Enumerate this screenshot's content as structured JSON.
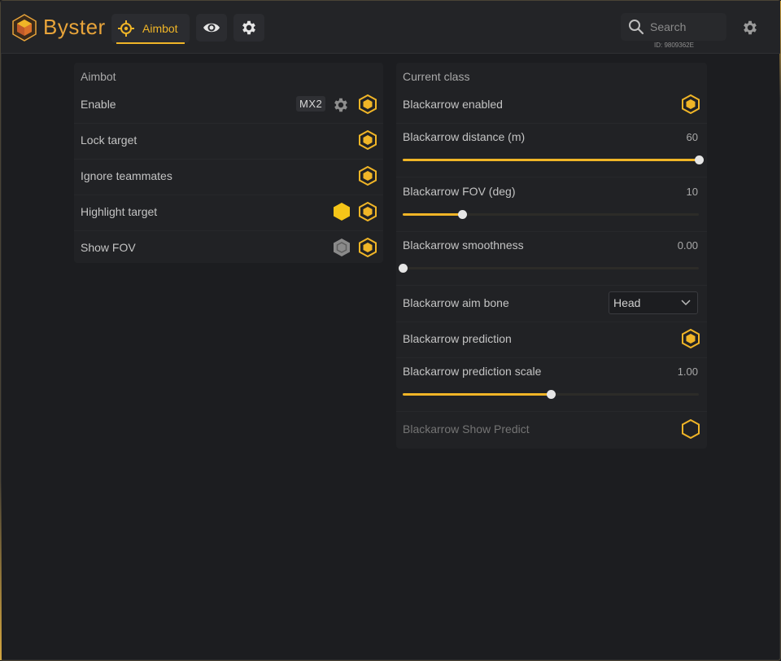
{
  "app": {
    "brand": "Byster",
    "user_id": "ID: 9809362E",
    "search_placeholder": "Search",
    "accent": "#f0b527"
  },
  "tabs": [
    {
      "label": "Aimbot",
      "icon": "crosshair-icon",
      "active": true
    },
    {
      "label": "",
      "icon": "eye-icon",
      "active": false
    },
    {
      "label": "",
      "icon": "gear-icon",
      "active": false
    }
  ],
  "aimbot_panel": {
    "title": "Aimbot",
    "rows": [
      {
        "label": "Enable",
        "hotkey": "MX2",
        "has_settings": true,
        "toggle": "on"
      },
      {
        "label": "Lock target",
        "toggle": "on"
      },
      {
        "label": "Ignore teammates",
        "toggle": "on"
      },
      {
        "label": "Highlight target",
        "color_swatch": "#f5c518",
        "toggle": "on"
      },
      {
        "label": "Show FOV",
        "color_swatch": "#8a8a8a",
        "toggle": "on"
      }
    ]
  },
  "class_panel": {
    "title": "Current class",
    "enabled_label": "Blackarrow enabled",
    "distance": {
      "label": "Blackarrow distance (m)",
      "value": "60",
      "fraction": 1.0
    },
    "fov": {
      "label": "Blackarrow FOV (deg)",
      "value": "10",
      "fraction": 0.2
    },
    "smoothness": {
      "label": "Blackarrow smoothness",
      "value": "0.00",
      "fraction": 0.0
    },
    "aim_bone": {
      "label": "Blackarrow aim bone",
      "selected": "Head"
    },
    "prediction_label": "Blackarrow prediction",
    "prediction_scale": {
      "label": "Blackarrow prediction scale",
      "value": "1.00",
      "fraction": 0.5
    },
    "show_predict_label": "Blackarrow Show Predict"
  }
}
